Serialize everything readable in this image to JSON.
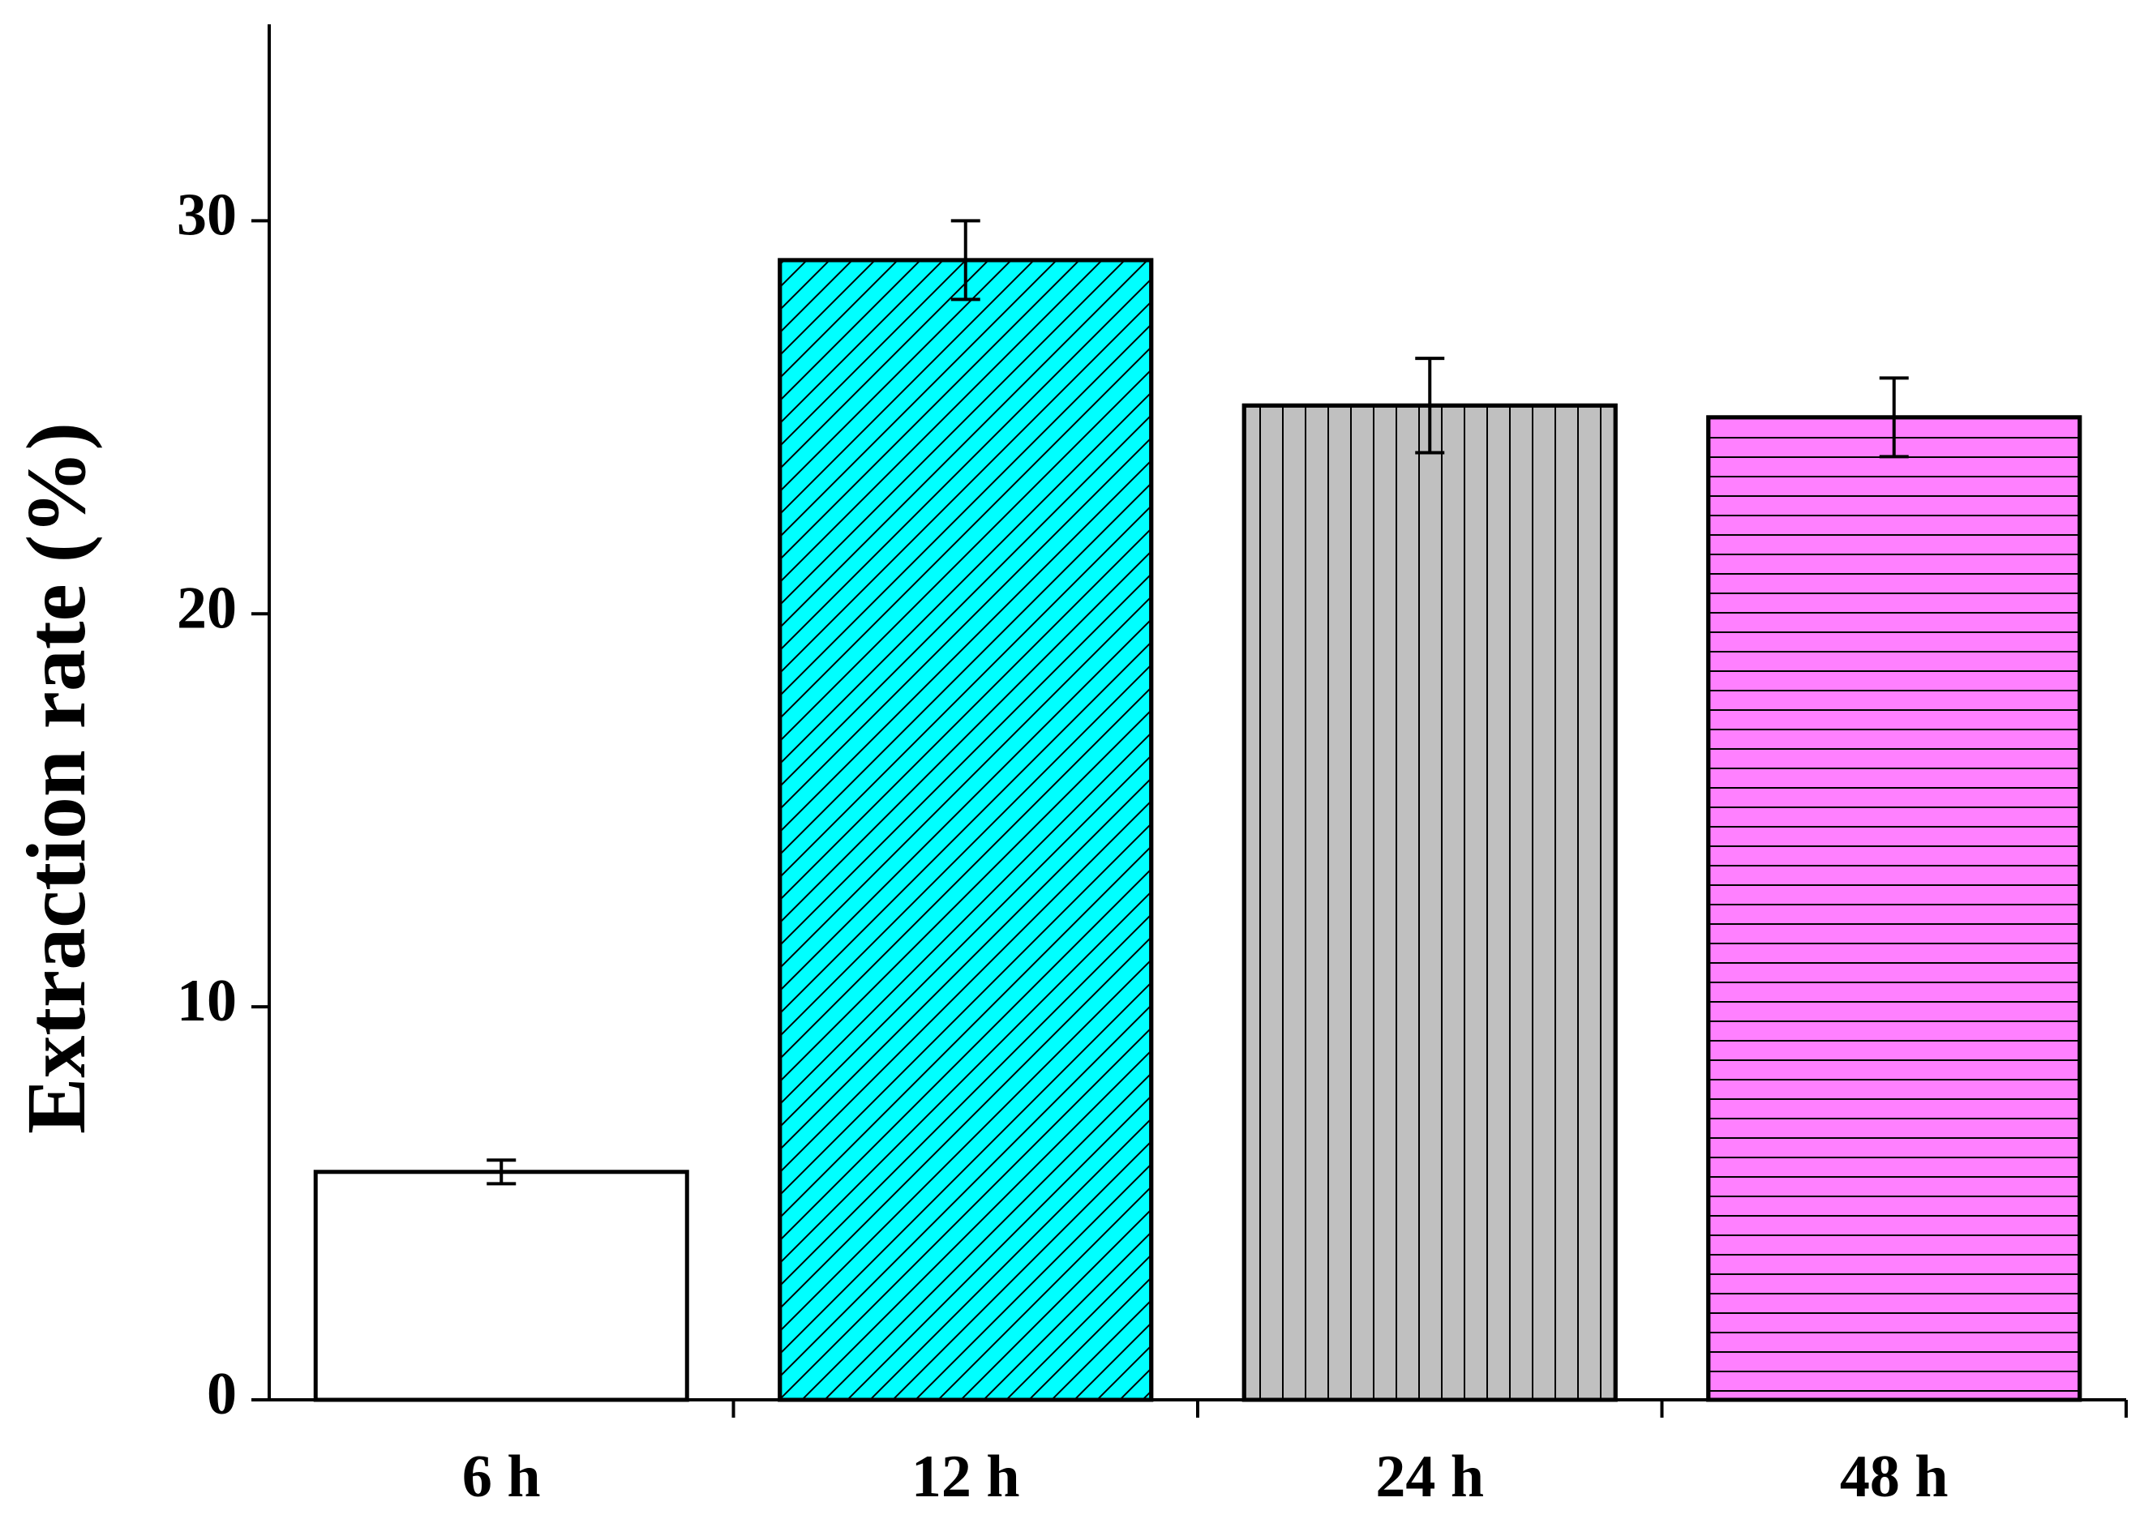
{
  "chart_data": {
    "type": "bar",
    "y_label": "Extraction rate (%)",
    "categories": [
      "6 h",
      "12 h",
      "24 h",
      "48 h"
    ],
    "values": [
      5.8,
      29.0,
      25.3,
      25.0
    ],
    "errors": [
      0.3,
      1.0,
      1.2,
      1.0
    ],
    "colors": [
      "#ffffff",
      "#00ffff",
      "#c0c0c0",
      "#ff80ff"
    ],
    "patterns": [
      "none",
      "diagonal",
      "vertical",
      "horizontal"
    ],
    "ylim": [
      0,
      35
    ],
    "yticks": [
      0,
      10,
      20,
      30
    ],
    "grid": false
  }
}
